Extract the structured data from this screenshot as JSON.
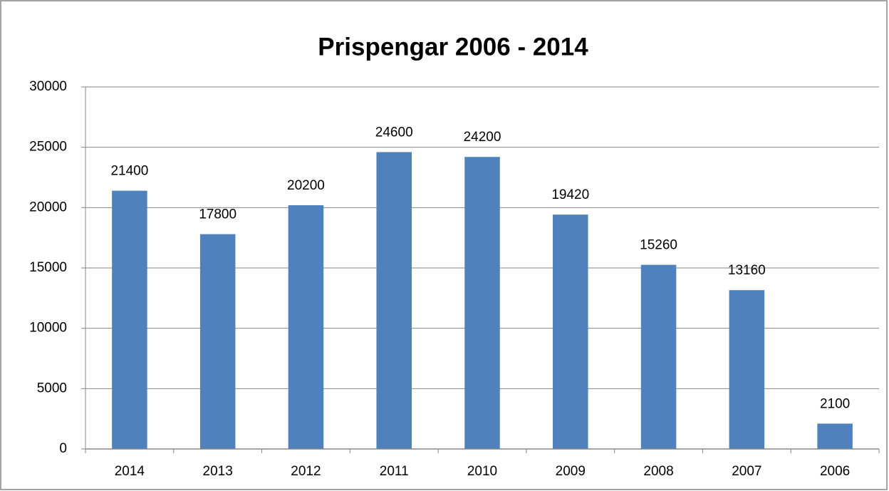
{
  "chart_data": {
    "type": "bar",
    "title": "Prispengar 2006 - 2014",
    "categories": [
      "2014",
      "2013",
      "2012",
      "2011",
      "2010",
      "2009",
      "2008",
      "2007",
      "2006"
    ],
    "values": [
      21400,
      17800,
      20200,
      24600,
      24200,
      19420,
      15260,
      13160,
      2100
    ],
    "color": "#4f81bd",
    "ylim": [
      0,
      30000
    ],
    "yticks": [
      0,
      5000,
      10000,
      15000,
      20000,
      25000,
      30000
    ],
    "grid": true,
    "data_labels": true
  }
}
